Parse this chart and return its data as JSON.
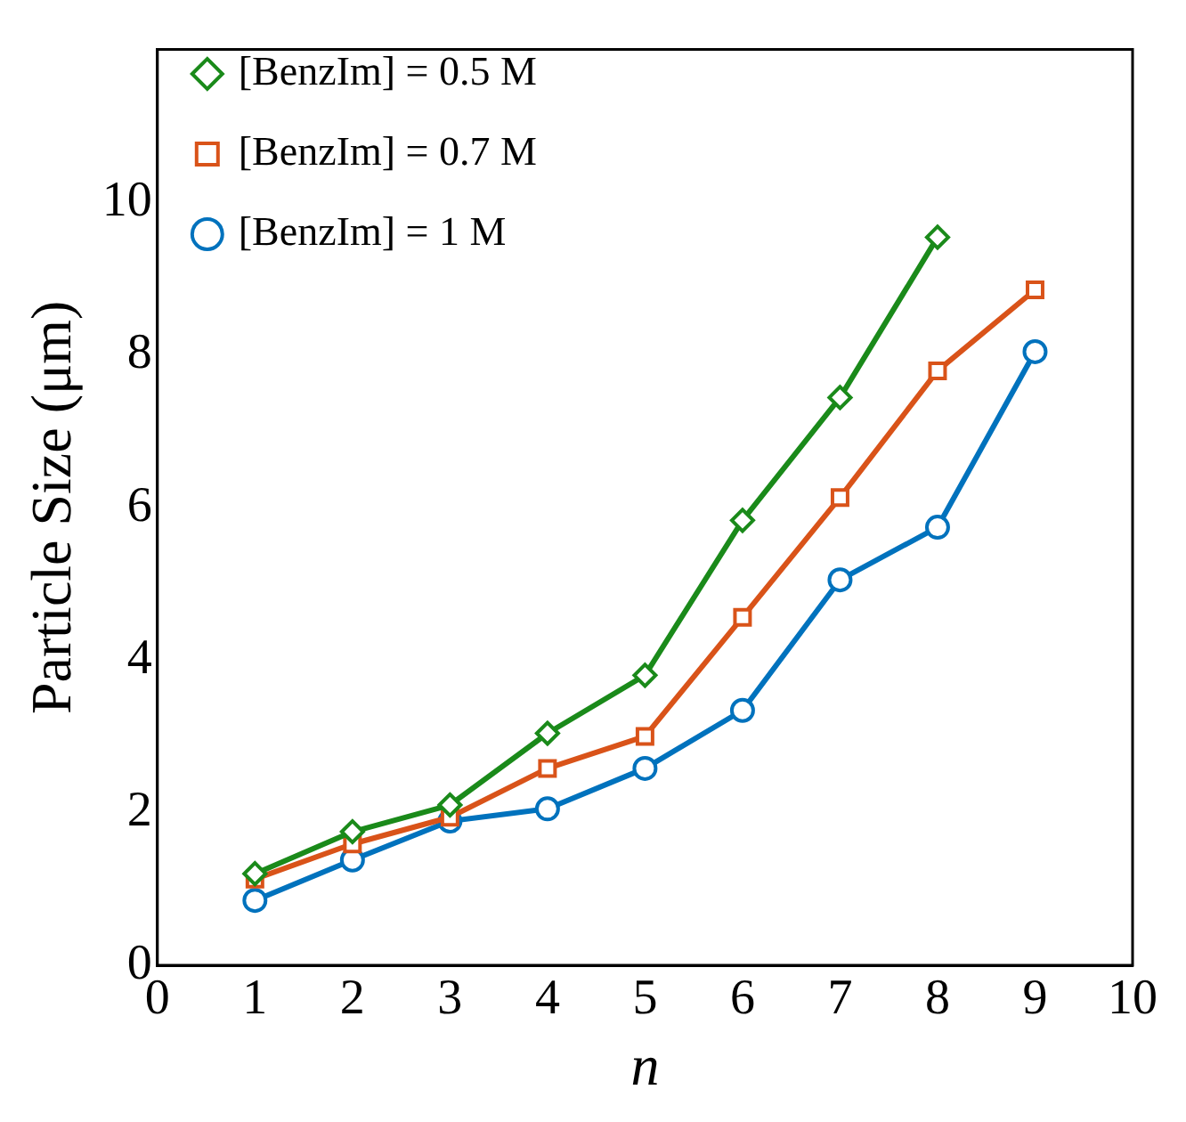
{
  "chart_data": {
    "type": "line",
    "xlabel": "n",
    "ylabel": "Particle Size (μm)",
    "xlim": [
      0,
      10
    ],
    "xticks": [
      0,
      1,
      2,
      3,
      4,
      5,
      6,
      7,
      8,
      9,
      10
    ],
    "ylim": [
      0,
      12
    ],
    "yticks": [
      0,
      2,
      4,
      6,
      8,
      10
    ],
    "grid": false,
    "legend": "top left",
    "line_style": "solid",
    "series": [
      {
        "name": "[BenzIm] = 0.5 M",
        "color": "#1a8a1a",
        "marker": "diamond",
        "x": [
          1,
          2,
          3,
          4,
          5,
          6,
          7,
          8
        ],
        "values": [
          1.2,
          1.75,
          2.1,
          3.04,
          3.8,
          5.83,
          7.44,
          9.54
        ]
      },
      {
        "name": "[BenzIm] = 0.7 M",
        "color": "#d95319",
        "marker": "square",
        "x": [
          1,
          2,
          3,
          4,
          5,
          6,
          7,
          8,
          9
        ],
        "values": [
          1.13,
          1.59,
          1.94,
          2.58,
          3.0,
          4.56,
          6.13,
          7.79,
          8.85
        ]
      },
      {
        "name": "[BenzIm] = 1 M",
        "color": "#0072bd",
        "marker": "circle",
        "x": [
          1,
          2,
          3,
          4,
          5,
          6,
          7,
          8,
          9
        ],
        "values": [
          0.85,
          1.38,
          1.89,
          2.05,
          2.58,
          3.34,
          5.05,
          5.74,
          8.04
        ]
      }
    ]
  }
}
